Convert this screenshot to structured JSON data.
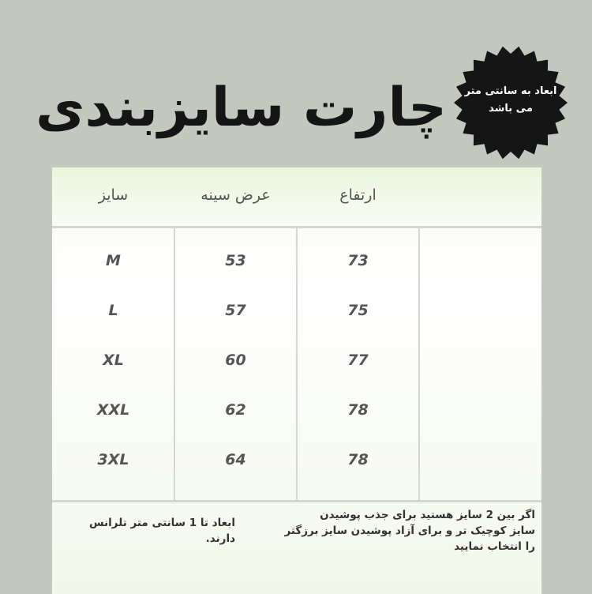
{
  "title": "چارت سایزبندی",
  "badge": {
    "line1": "ابعاد به سانتی متر",
    "line2": "می باشد"
  },
  "table": {
    "headers": [
      "سایز",
      "عرض سینه",
      "ارتفاع",
      ""
    ],
    "rows": [
      [
        "M",
        "53",
        "73",
        ""
      ],
      [
        "L",
        "57",
        "75",
        ""
      ],
      [
        "XL",
        "60",
        "77",
        ""
      ],
      [
        "XXL",
        "62",
        "78",
        ""
      ],
      [
        "3XL",
        "64",
        "78",
        ""
      ]
    ]
  },
  "footer": {
    "tolerance": "ابعاد تا 1 سانتی متر تلرانس دارند.",
    "advice": [
      "اگر بین 2 سایز هستید برای جذب پوشیدن",
      "سایز کوچیک تر و برای آزاد پوشیدن سایز برزگتر",
      "را انتخاب نمایید"
    ]
  }
}
